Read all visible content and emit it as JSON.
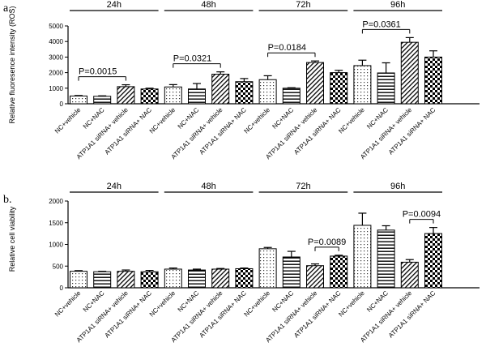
{
  "chart_data": [
    {
      "type": "bar",
      "panel_label": "a.",
      "ylabel": "Relative fluoresence intensity (ROS)",
      "ylim": [
        0,
        5000
      ],
      "yticks": [
        0,
        1000,
        2000,
        3000,
        4000,
        5000
      ],
      "categories": [
        "NC+vehicle",
        "NC+NAC",
        "ATP1A1 siRNA+ vehicle",
        "ATP1A1 siRNA+ NAC"
      ],
      "groups": [
        {
          "label": "24h",
          "values": [
            500,
            480,
            1100,
            950
          ],
          "errors": [
            30,
            30,
            120,
            50
          ],
          "annotation": {
            "text": "P=0.0015",
            "from": 0,
            "to": 2
          }
        },
        {
          "label": "48h",
          "values": [
            1080,
            950,
            1900,
            1420
          ],
          "errors": [
            150,
            350,
            150,
            200
          ],
          "annotation": {
            "text": "P=0.0321",
            "from": 0,
            "to": 2
          }
        },
        {
          "label": "72h",
          "values": [
            1550,
            1000,
            2650,
            2000
          ],
          "errors": [
            250,
            30,
            100,
            150
          ],
          "annotation": {
            "text": "P=0.0184",
            "from": 0,
            "to": 2
          }
        },
        {
          "label": "96h",
          "values": [
            2450,
            1980,
            3950,
            3000
          ],
          "errors": [
            350,
            650,
            300,
            400
          ],
          "annotation": {
            "text": "P=0.0361",
            "from": 0,
            "to": 2
          }
        }
      ]
    },
    {
      "type": "bar",
      "panel_label": "b.",
      "ylabel": "Relative cell viability",
      "ylim": [
        0,
        2000
      ],
      "yticks": [
        0,
        500,
        1000,
        1500,
        2000
      ],
      "categories": [
        "NC+vehicle",
        "NC+NAC",
        "ATP1A1 siRNA+ vehicle",
        "ATP1A1 siRNA+ NAC"
      ],
      "groups": [
        {
          "label": "24h",
          "values": [
            380,
            370,
            380,
            370
          ],
          "errors": [
            15,
            10,
            30,
            30
          ]
        },
        {
          "label": "48h",
          "values": [
            430,
            410,
            430,
            440
          ],
          "errors": [
            25,
            20,
            15,
            15
          ]
        },
        {
          "label": "72h",
          "values": [
            900,
            710,
            510,
            730
          ],
          "errors": [
            30,
            130,
            40,
            20
          ],
          "annotation": {
            "text": "P=0.0089",
            "from": 2,
            "to": 3
          }
        },
        {
          "label": "96h",
          "values": [
            1440,
            1330,
            590,
            1250
          ],
          "errors": [
            280,
            100,
            60,
            140
          ],
          "annotation": {
            "text": "P=0.0094",
            "from": 2,
            "to": 3
          }
        }
      ]
    }
  ]
}
